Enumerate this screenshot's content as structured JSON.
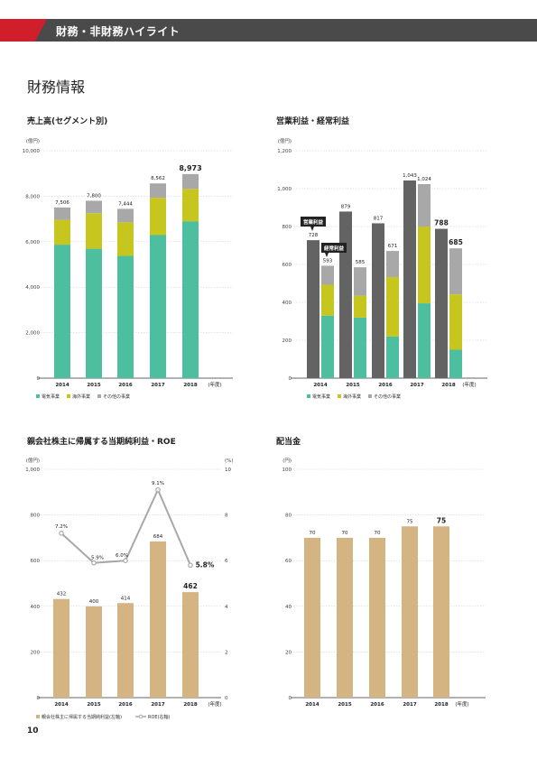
{
  "header": {
    "title": "財務・非財務ハイライト"
  },
  "page_heading": "財務情報",
  "page_number": "10",
  "chart_data": [
    {
      "id": "sales",
      "type": "bar",
      "stacked": true,
      "title": "売上高(セグメント別)",
      "unit": "(億円)",
      "categories": [
        "2014",
        "2015",
        "2016",
        "2017",
        "2018"
      ],
      "xunit": "(年度)",
      "yticks": [
        "0",
        "2,000",
        "4,000",
        "6,000",
        "8,000",
        "10,000"
      ],
      "ylim": [
        0,
        10000
      ],
      "grid": true,
      "series": [
        {
          "name": "電気事業",
          "color": "#4dbf9f",
          "values": [
            5870,
            5690,
            5380,
            6290,
            6900
          ]
        },
        {
          "name": "海外事業",
          "color": "#c6c61e",
          "values": [
            1090,
            1560,
            1470,
            1640,
            1420
          ]
        },
        {
          "name": "その他の事業",
          "color": "#a8a8a8",
          "values": [
            546,
            550,
            594,
            632,
            653
          ]
        }
      ],
      "totals": [
        "7,506",
        "7,800",
        "7,444",
        "8,562",
        "8,973"
      ],
      "legend_position": "bottom-left"
    },
    {
      "id": "profit",
      "type": "bar",
      "grouped": true,
      "title": "営業利益・経常利益",
      "unit": "(億円)",
      "categories": [
        "2014",
        "2015",
        "2016",
        "2017",
        "2018"
      ],
      "xunit": "(年度)",
      "yticks": [
        "0",
        "200",
        "400",
        "600",
        "800",
        "1,000",
        "1,200"
      ],
      "ylim": [
        0,
        1200
      ],
      "grid": true,
      "operating_profit": {
        "name": "営業利益",
        "color": "#636363",
        "values": [
          728,
          879,
          817,
          1043,
          788
        ],
        "labels": [
          "728",
          "879",
          "817",
          "1,043",
          "788"
        ]
      },
      "ordinary_profit": {
        "name": "経常利益",
        "labels": [
          "593",
          "585",
          "671",
          "1,024",
          "685"
        ],
        "series": [
          {
            "name": "電気事業",
            "color": "#4dbf9f",
            "values": [
              330,
              320,
              220,
              395,
              150
            ]
          },
          {
            "name": "海外事業",
            "color": "#c6c61e",
            "values": [
              163,
              115,
              313,
              405,
              292
            ]
          },
          {
            "name": "その他の事業",
            "color": "#a8a8a8",
            "values": [
              100,
              150,
              138,
              224,
              243
            ]
          }
        ]
      },
      "callouts": [
        "営業利益",
        "経常利益"
      ],
      "legend": [
        {
          "name": "電気事業",
          "color": "#4dbf9f"
        },
        {
          "name": "海外事業",
          "color": "#c6c61e"
        },
        {
          "name": "その他の事業",
          "color": "#a8a8a8"
        }
      ],
      "legend_position": "bottom-left"
    },
    {
      "id": "netincome",
      "type": "bar",
      "title": "親会社株主に帰属する当期純利益・ROE",
      "unit_left": "(億円)",
      "unit_right": "(%)",
      "categories": [
        "2014",
        "2015",
        "2016",
        "2017",
        "2018"
      ],
      "xunit": "(年度)",
      "yticks": [
        "0",
        "200",
        "400",
        "600",
        "800",
        "1,000"
      ],
      "ylim": [
        0,
        1000
      ],
      "y2ticks": [
        "0",
        "2",
        "4",
        "6",
        "8",
        "10"
      ],
      "y2lim": [
        0,
        10
      ],
      "grid": true,
      "bars": {
        "name": "親会社株主に帰属する当期純利益(左軸)",
        "color": "#d4b483",
        "values": [
          432,
          400,
          414,
          684,
          462
        ],
        "labels": [
          "432",
          "400",
          "414",
          "684",
          "462"
        ]
      },
      "line": {
        "name": "ROE(右軸)",
        "color": "#a8a8a8",
        "values": [
          7.2,
          5.9,
          6.0,
          9.1,
          5.8
        ],
        "labels": [
          "7.2%",
          "5.9%",
          "6.0%",
          "9.1%",
          "5.8%"
        ]
      },
      "legend_position": "bottom-left"
    },
    {
      "id": "dividend",
      "type": "bar",
      "title": "配当金",
      "unit": "(円)",
      "categories": [
        "2014",
        "2015",
        "2016",
        "2017",
        "2018"
      ],
      "xunit": "(年度)",
      "yticks": [
        "0",
        "20",
        "40",
        "60",
        "80",
        "100"
      ],
      "ylim": [
        0,
        100
      ],
      "grid": true,
      "bars": {
        "color": "#d4b483",
        "values": [
          70,
          70,
          70,
          75,
          75
        ],
        "labels": [
          "70",
          "70",
          "70",
          "75",
          "75"
        ]
      }
    }
  ]
}
